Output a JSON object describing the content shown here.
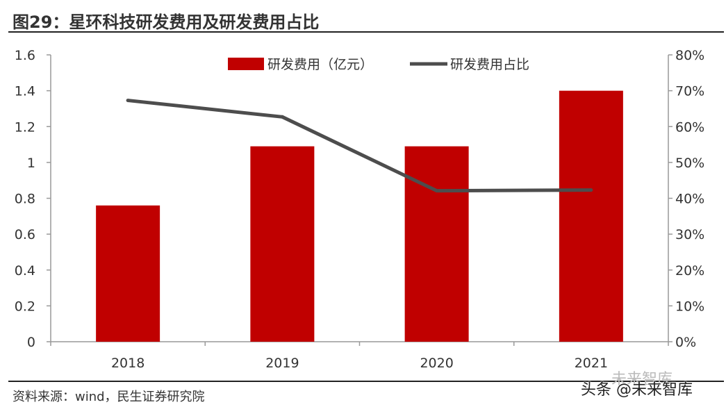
{
  "header": {
    "title": "图29：星环科技研发费用及研发费用占比"
  },
  "footer": {
    "source": "资料来源：wind，民生证券研究院"
  },
  "watermark": {
    "text": "头条 @未来智库",
    "faint_text": "未来智库"
  },
  "colors": {
    "bar": "#C00000",
    "line": "#4D4D4D",
    "axis": "#999999",
    "text": "#333333"
  },
  "chart_data": {
    "type": "bar",
    "title": "星环科技研发费用及研发费用占比",
    "categories": [
      "2018",
      "2019",
      "2020",
      "2021"
    ],
    "series": [
      {
        "name": "研发费用（亿元）",
        "type": "bar",
        "axis": "left",
        "values": [
          0.76,
          1.09,
          1.09,
          1.4
        ]
      },
      {
        "name": "研发费用占比",
        "type": "line",
        "axis": "right",
        "values": [
          0.673,
          0.627,
          0.421,
          0.423
        ]
      }
    ],
    "y_left": {
      "min": 0,
      "max": 1.6,
      "ticks": [
        "0",
        "0.2",
        "0.4",
        "0.6",
        "0.8",
        "1",
        "1.2",
        "1.4",
        "1.6"
      ]
    },
    "y_right": {
      "min": 0,
      "max": 0.8,
      "ticks": [
        "0%",
        "10%",
        "20%",
        "30%",
        "40%",
        "50%",
        "60%",
        "70%",
        "80%"
      ]
    },
    "legend": [
      "研发费用（亿元）",
      "研发费用占比"
    ],
    "legend_position": "top-center",
    "grid": false
  }
}
